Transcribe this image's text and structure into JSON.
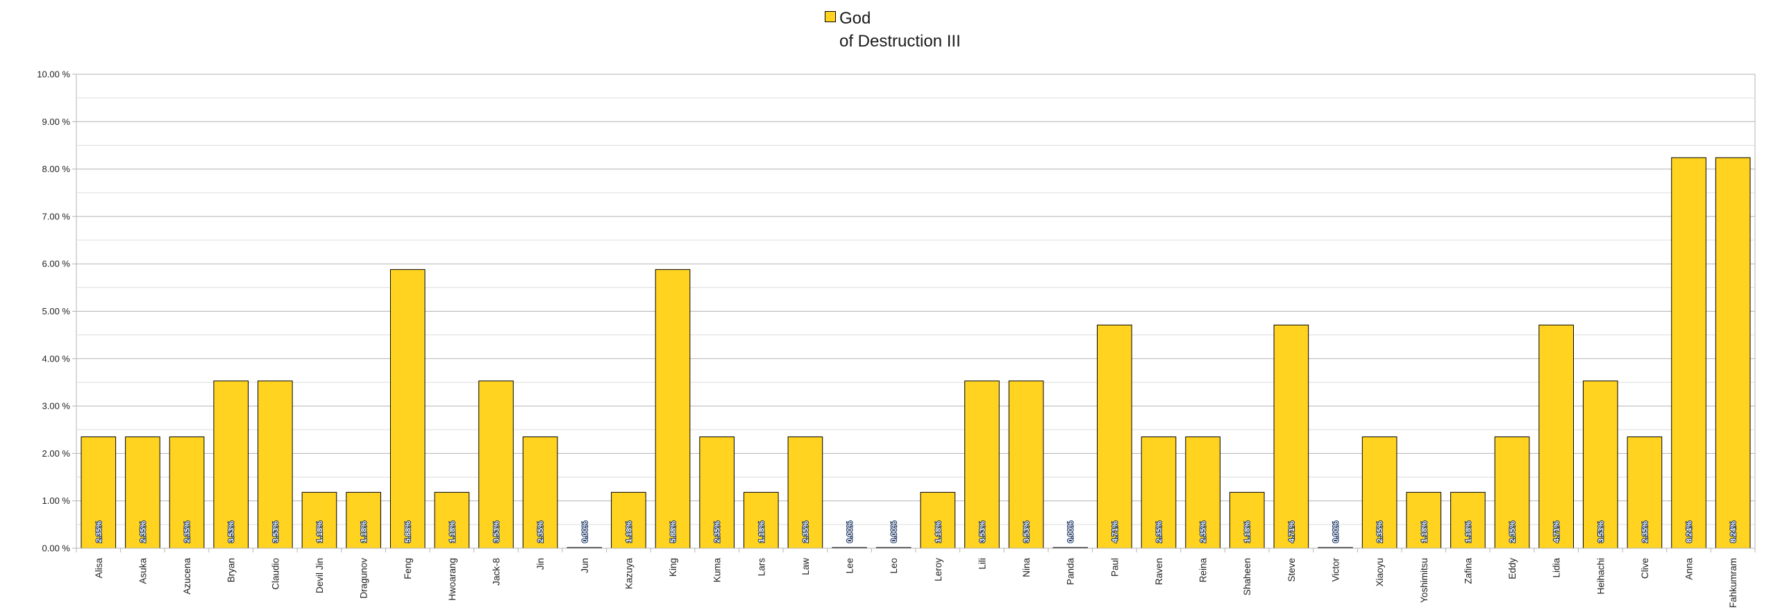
{
  "chart_data": {
    "type": "bar",
    "title": "",
    "xlabel": "",
    "ylabel": "",
    "ylim": [
      0,
      10
    ],
    "y_ticks": [
      "0.00 %",
      "1.00 %",
      "2.00 %",
      "3.00 %",
      "4.00 %",
      "5.00 %",
      "6.00 %",
      "7.00 %",
      "8.00 %",
      "9.00 %",
      "10.00 %"
    ],
    "grid": true,
    "legend_position": "top-center",
    "bar_color": "#ffd320",
    "categories": [
      "Alisa",
      "Asuka",
      "Azucena",
      "Bryan",
      "Claudio",
      "Devil Jin",
      "Dragunov",
      "Feng",
      "Hwoarang",
      "Jack-8",
      "Jin",
      "Jun",
      "Kazuya",
      "King",
      "Kuma",
      "Lars",
      "Law",
      "Lee",
      "Leo",
      "Leroy",
      "Lili",
      "Nina",
      "Panda",
      "Paul",
      "Raven",
      "Reina",
      "Shaheen",
      "Steve",
      "Victor",
      "Xiaoyu",
      "Yoshimitsu",
      "Zafina",
      "Eddy",
      "Lidia",
      "Heihachi",
      "Clive",
      "Anna",
      "Fahkumram"
    ],
    "series": [
      {
        "name": "God of Destruction III",
        "values": [
          2.35,
          2.35,
          2.35,
          3.53,
          3.53,
          1.18,
          1.18,
          5.88,
          1.18,
          3.53,
          2.35,
          0.0,
          1.18,
          5.88,
          2.35,
          1.18,
          2.35,
          0.0,
          0.0,
          1.18,
          3.53,
          3.53,
          0.0,
          4.71,
          2.35,
          2.35,
          1.18,
          4.71,
          0.0,
          2.35,
          1.18,
          1.18,
          2.35,
          4.71,
          3.53,
          2.35,
          8.24,
          8.24
        ],
        "labels": [
          "2.35%",
          "2.35%",
          "2.35%",
          "3.53%",
          "3.53%",
          "1.18%",
          "1.18%",
          "5.88%",
          "1.18%",
          "3.53%",
          "2.35%",
          "0.00%",
          "1.18%",
          "5.88%",
          "2.35%",
          "1.18%",
          "2.35%",
          "0.00%",
          "0.00%",
          "1.18%",
          "3.53%",
          "3.53%",
          "0.00%",
          "4.71%",
          "2.35%",
          "2.35%",
          "1.18%",
          "4.71%",
          "0.00%",
          "2.35%",
          "1.18%",
          "1.18%",
          "2.35%",
          "4.71%",
          "3.53%",
          "2.35%",
          "8.24%",
          "8.24%"
        ]
      }
    ]
  },
  "legend": {
    "line1": "God",
    "line2": "of Destruction III"
  }
}
